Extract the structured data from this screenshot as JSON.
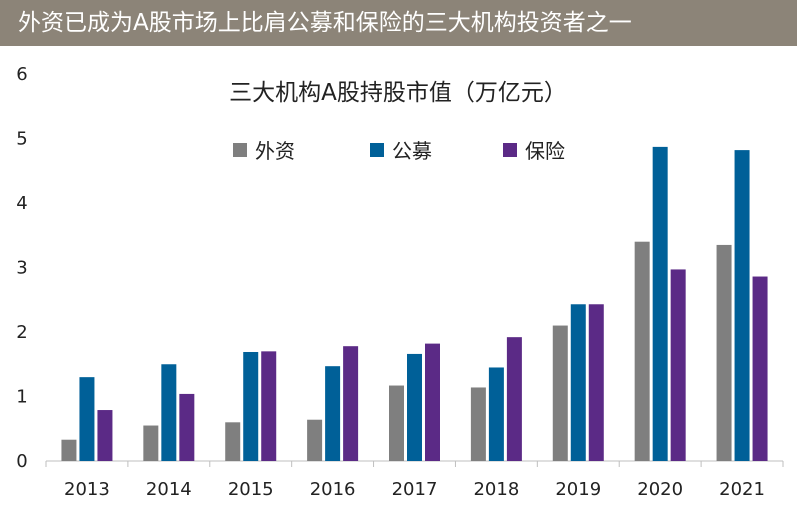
{
  "banner": {
    "title": "外资已成为A股市场上比肩公募和保险的三大机构投资者之一",
    "bg_color": "#8c8478"
  },
  "chart_data": {
    "type": "bar",
    "title": "三大机构A股持股市值（万亿元）",
    "categories": [
      "2013",
      "2014",
      "2015",
      "2016",
      "2017",
      "2018",
      "2019",
      "2020",
      "2021"
    ],
    "series": [
      {
        "name": "外资",
        "color": "#7f7f7f",
        "values": [
          0.33,
          0.55,
          0.6,
          0.64,
          1.17,
          1.14,
          2.1,
          3.4,
          3.35
        ]
      },
      {
        "name": "公募",
        "color": "#006098",
        "values": [
          1.3,
          1.5,
          1.69,
          1.47,
          1.66,
          1.45,
          2.43,
          4.87,
          4.82
        ]
      },
      {
        "name": "保险",
        "color": "#5b2a86",
        "values": [
          0.79,
          1.04,
          1.7,
          1.78,
          1.82,
          1.92,
          2.43,
          2.97,
          2.86
        ]
      }
    ],
    "yticks": [
      "0",
      "1",
      "2",
      "3",
      "4",
      "5",
      "6"
    ],
    "ylim": [
      0,
      6
    ],
    "xlabel": "",
    "ylabel": "",
    "grid": false,
    "legend_position": "top-center"
  }
}
